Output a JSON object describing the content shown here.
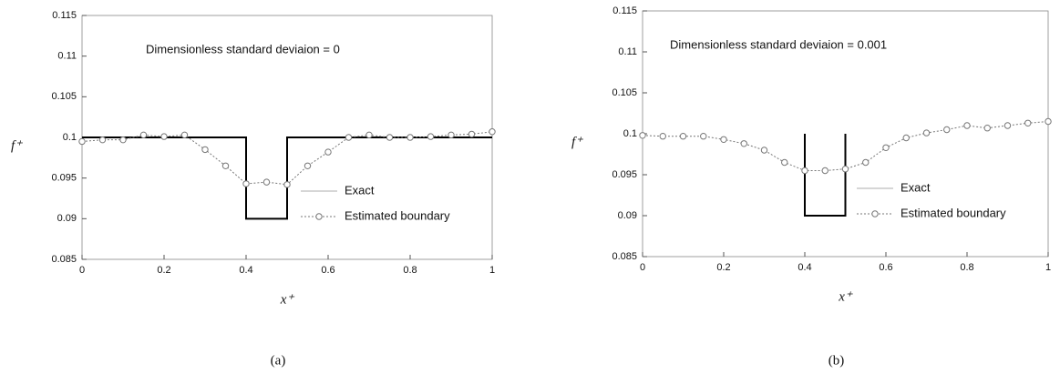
{
  "chart_data": [
    {
      "type": "line",
      "annotation": "Dimensionless standard deviaion = 0",
      "x_label": "x⁺",
      "y_label": "f⁺",
      "caption": "(a)",
      "xlim": [
        0,
        1
      ],
      "xticks": [
        0,
        0.2,
        0.4,
        0.6,
        0.8,
        1
      ],
      "ylim": [
        0.085,
        0.115
      ],
      "yticks": [
        0.085,
        0.09,
        0.095,
        0.1,
        0.105,
        0.11,
        0.115
      ],
      "legend": "lower right",
      "series": [
        {
          "name": "Exact",
          "color": "#000000",
          "line_style": "solid",
          "marker": "none",
          "x": [
            0,
            0.4,
            0.4,
            0.5,
            0.5,
            1
          ],
          "values": [
            0.1,
            0.1,
            0.09,
            0.09,
            0.1,
            0.1
          ]
        },
        {
          "name": "Estimated boundary",
          "color": "#777777",
          "line_style": "dotted",
          "marker": "circle",
          "x": [
            0,
            0.05,
            0.1,
            0.15,
            0.2,
            0.25,
            0.3,
            0.35,
            0.4,
            0.45,
            0.5,
            0.55,
            0.6,
            0.65,
            0.7,
            0.75,
            0.8,
            0.85,
            0.9,
            0.95,
            1
          ],
          "values": [
            0.0995,
            0.0997,
            0.0997,
            0.1003,
            0.1001,
            0.1003,
            0.0985,
            0.0965,
            0.0943,
            0.0945,
            0.0942,
            0.0965,
            0.0982,
            0.1,
            0.1003,
            0.1,
            0.1,
            0.1001,
            0.1003,
            0.1004,
            0.1007
          ]
        }
      ]
    },
    {
      "type": "line",
      "annotation": "Dimensionless standard deviaion = 0.001",
      "x_label": "x⁺",
      "y_label": "f⁺",
      "caption": "(b)",
      "xlim": [
        0,
        1
      ],
      "xticks": [
        0,
        0.2,
        0.4,
        0.6,
        0.8,
        1
      ],
      "ylim": [
        0.085,
        0.115
      ],
      "yticks": [
        0.085,
        0.09,
        0.095,
        0.1,
        0.105,
        0.11,
        0.115
      ],
      "legend": "lower right",
      "series": [
        {
          "name": "Exact",
          "color": "#000000",
          "line_style": "solid",
          "marker": "none",
          "x": [
            0.4,
            0.4,
            0.5,
            0.5
          ],
          "values": [
            0.1,
            0.09,
            0.09,
            0.1
          ]
        },
        {
          "name": "Estimated boundary",
          "color": "#777777",
          "line_style": "dotted",
          "marker": "circle",
          "x": [
            0,
            0.05,
            0.1,
            0.15,
            0.2,
            0.25,
            0.3,
            0.35,
            0.4,
            0.45,
            0.5,
            0.55,
            0.6,
            0.65,
            0.7,
            0.75,
            0.8,
            0.85,
            0.9,
            0.95,
            1
          ],
          "values": [
            0.0998,
            0.0997,
            0.0997,
            0.0997,
            0.0993,
            0.0988,
            0.098,
            0.0965,
            0.0955,
            0.0955,
            0.0957,
            0.0965,
            0.0983,
            0.0995,
            0.1001,
            0.1005,
            0.101,
            0.1007,
            0.101,
            0.1013,
            0.1015
          ]
        }
      ]
    }
  ]
}
